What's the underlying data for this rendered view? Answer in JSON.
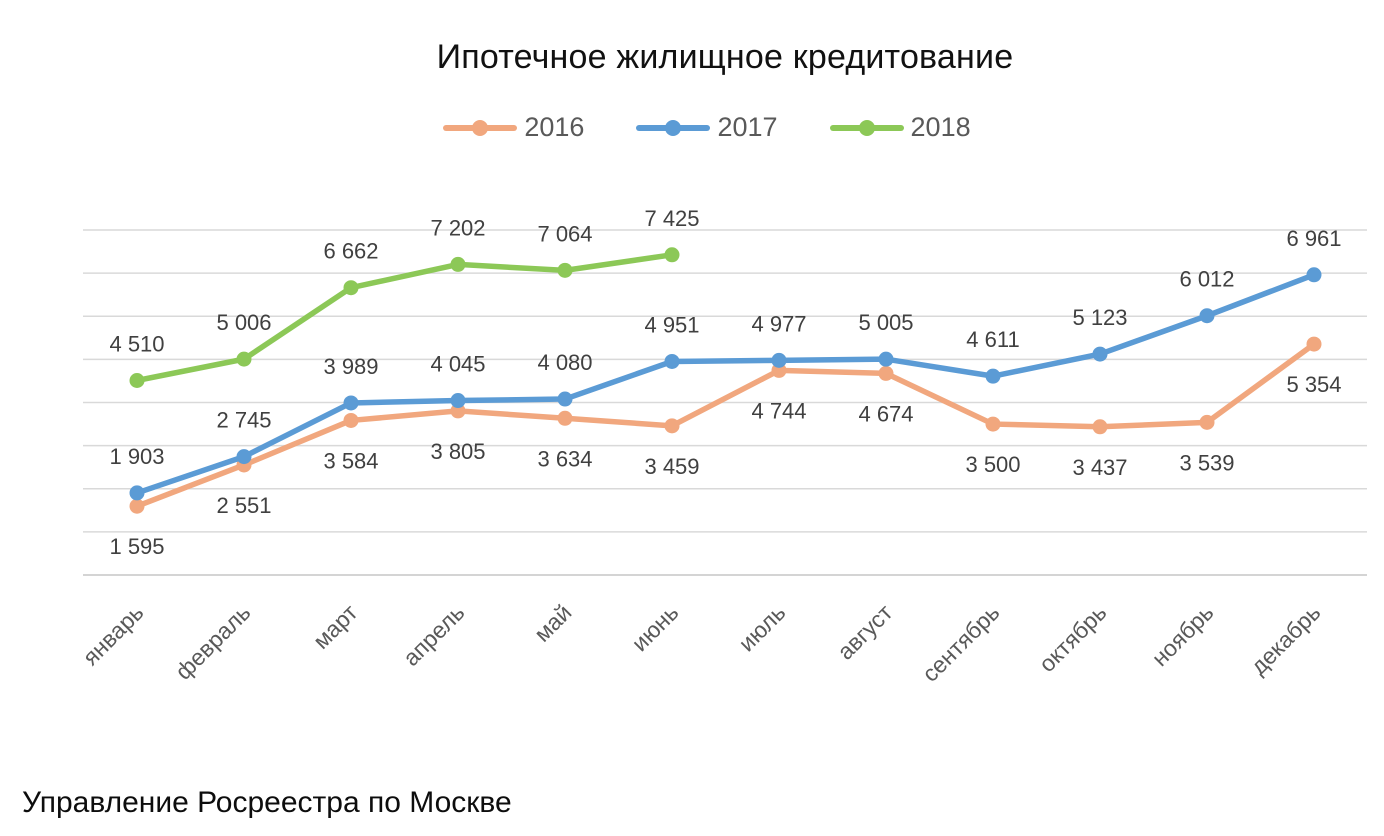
{
  "footer": "Управление Росреестра по Москве",
  "style": {
    "grid_color": "#D9D9D9",
    "axis_color": "#C6C6C6",
    "data_label_color": "#404040",
    "tick_label_color": "#595959",
    "legend_text_color": "#595959",
    "title_color": "#111111"
  },
  "chart_data": {
    "type": "line",
    "title": "Ипотечное жилищное кредитование",
    "categories": [
      "январь",
      "февраль",
      "март",
      "апрель",
      "май",
      "июнь",
      "июль",
      "август",
      "сентябрь",
      "октябрь",
      "ноябрь",
      "декабрь"
    ],
    "series": [
      {
        "name": "2016",
        "color": "#F1A77E",
        "label_position": "below",
        "values": [
          1595,
          2551,
          3584,
          3805,
          3634,
          3459,
          4744,
          4674,
          3500,
          3437,
          3539,
          5354
        ],
        "labels": [
          "1 595",
          "2 551",
          "3 584",
          "3 805",
          "3 634",
          "3 459",
          "4 744",
          "4 674",
          "3 500",
          "3 437",
          "3 539",
          "5 354"
        ]
      },
      {
        "name": "2017",
        "color": "#5B9BD5",
        "label_position": "above",
        "values": [
          1903,
          2745,
          3989,
          4045,
          4080,
          4951,
          4977,
          5005,
          4611,
          5123,
          6012,
          6961
        ],
        "labels": [
          "1 903",
          "2 745",
          "3 989",
          "4 045",
          "4 080",
          "4 951",
          "4 977",
          "5 005",
          "4 611",
          "5 123",
          "6 012",
          "6 961"
        ]
      },
      {
        "name": "2018",
        "color": "#8CC857",
        "label_position": "above",
        "values": [
          4510,
          5006,
          6662,
          7202,
          7064,
          7425,
          null,
          null,
          null,
          null,
          null,
          null
        ],
        "labels": [
          "4 510",
          "5 006",
          "6 662",
          "7 202",
          "7 064",
          "7 425",
          null,
          null,
          null,
          null,
          null,
          null
        ]
      }
    ],
    "xlabel": "",
    "ylabel": "",
    "ylim": [
      0,
      8000
    ],
    "gridline_step": 1000,
    "grid": true,
    "legend_position": "top",
    "x_tick_rotation": 45
  }
}
